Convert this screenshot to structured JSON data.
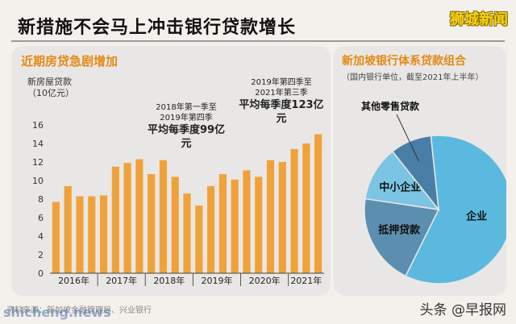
{
  "header": {
    "title": "新措施不会马上冲击银行贷款增长",
    "brand": "狮城新闻"
  },
  "chart_data": [
    {
      "type": "bar",
      "title": "近期房贷急剧增加",
      "ylabel_line1": "新房屋贷款",
      "ylabel_line2": "（10亿元）",
      "ylim": [
        0,
        16
      ],
      "yticks": [
        0,
        2,
        4,
        6,
        8,
        10,
        12,
        14,
        16
      ],
      "grid": false,
      "color": "#f0a23a",
      "values": [
        7.7,
        9.4,
        8.3,
        8.3,
        8.4,
        11.5,
        11.9,
        12.3,
        10.7,
        12.2,
        10.4,
        8.6,
        7.3,
        9.4,
        10.7,
        10.1,
        11.1,
        10.4,
        12.2,
        12.0,
        13.4,
        14.0,
        15.0
      ],
      "year_groups": [
        {
          "label": "2016年",
          "count": 4
        },
        {
          "label": "2017年",
          "count": 4
        },
        {
          "label": "2018年",
          "count": 4
        },
        {
          "label": "2019年",
          "count": 4
        },
        {
          "label": "2020年",
          "count": 4
        },
        {
          "label": "2021年",
          "count": 3
        }
      ],
      "annotations": [
        {
          "line1": "2018年第一季至",
          "line2": "2019年第四季",
          "line3": "平均每季度99亿元"
        },
        {
          "line1": "2019年第四季至",
          "line2": "2021年第三季",
          "line3": "平均每季度123亿元"
        }
      ]
    },
    {
      "type": "pie",
      "title": "新加坡银行体系贷款组合",
      "subtitle": "（国内银行单位，截至2021年上半年）",
      "slices": [
        {
          "label": "企业",
          "value": 59,
          "color": "#5bb9e0"
        },
        {
          "label": "抵押贷款",
          "value": 20,
          "color": "#5c8eb0"
        },
        {
          "label": "中小企业",
          "value": 12,
          "color": "#7cc4e4"
        },
        {
          "label": "其他零售贷款",
          "value": 9,
          "color": "#497fa6"
        }
      ]
    }
  ],
  "footer": {
    "source": "资料来源：新加坡金融管理局、兴业银行",
    "watermark": "shicheng.news",
    "media": "头条 @早报网"
  }
}
